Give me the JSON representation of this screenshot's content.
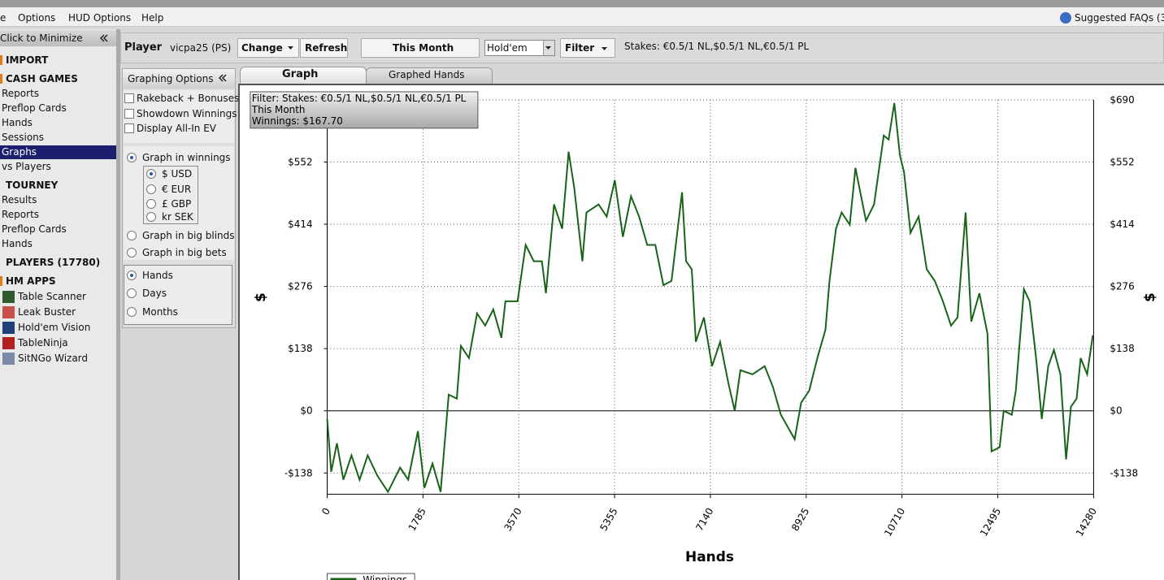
{
  "menu": {
    "items": [
      "e",
      "Options",
      "HUD Options",
      "Help"
    ],
    "faq": "Suggested FAQs (3"
  },
  "sidebar": {
    "minimize": "Click to Minimize",
    "import": "IMPORT",
    "cash_games": {
      "title": "CASH GAMES",
      "items": [
        "Reports",
        "Preflop Cards",
        "Hands",
        "Sessions",
        "Graphs",
        "vs Players"
      ]
    },
    "tourney": {
      "title": "TOURNEY",
      "items": [
        "Results",
        "Reports",
        "Preflop Cards",
        "Hands"
      ]
    },
    "players": "PLAYERS (17780)",
    "hm_apps": {
      "title": "HM APPS",
      "items": [
        "Table Scanner",
        "Leak Buster",
        "Hold'em Vision",
        "TableNinja",
        "SitNGo Wizard"
      ]
    }
  },
  "toolbar": {
    "player_label": "Player",
    "player": "vicpa25 (PS)",
    "change": "Change",
    "refresh": "Refresh",
    "period": "This Month",
    "game": "Hold'em",
    "filter": "Filter",
    "stakes": "Stakes: €0.5/1 NL,$0.5/1 NL,€0.5/1 PL"
  },
  "options": {
    "title": "Graphing Options",
    "checkboxes": [
      "Rakeback + Bonuses",
      "Showdown Winnings",
      "Display All-In EV"
    ],
    "graph_in": [
      "Graph in winnings",
      "Graph in big blinds",
      "Graph in big bets"
    ],
    "currencies": [
      "$ USD",
      "€ EUR",
      "£ GBP",
      "kr SEK"
    ],
    "x_modes": [
      "Hands",
      "Days",
      "Months"
    ]
  },
  "tabs": [
    "Graph",
    "Graphed Hands"
  ],
  "chart_data": {
    "type": "line",
    "x_label": "Hands",
    "y_label": "$",
    "annotations": [
      "Filter: Stakes: €0.5/1 NL,$0.5/1 NL,€0.5/1 PL",
      "This Month",
      "Winnings: $167.70"
    ],
    "xlim": [
      0,
      14280
    ],
    "xticks": [
      0,
      1785,
      3570,
      5355,
      7140,
      8925,
      10710,
      12495,
      14280
    ],
    "ylim": [
      -185,
      690
    ],
    "yticks": [
      {
        "value": -138,
        "label": "-$138"
      },
      {
        "value": 0,
        "label": "$0"
      },
      {
        "value": 138,
        "label": "$138"
      },
      {
        "value": 276,
        "label": "$276"
      },
      {
        "value": 414,
        "label": "$414"
      },
      {
        "value": 552,
        "label": "$552"
      },
      {
        "value": 690,
        "label": "$690"
      }
    ],
    "grid": true,
    "x": [
      0,
      75,
      181,
      302,
      453,
      604,
      755,
      936,
      1132,
      1359,
      1510,
      1691,
      1811,
      1962,
      2113,
      2189,
      2264,
      2415,
      2491,
      2642,
      2793,
      2944,
      3094,
      3245,
      3321,
      3547,
      3698,
      3849,
      4000,
      4076,
      4227,
      4378,
      4498,
      4604,
      4755,
      4830,
      5057,
      5208,
      5359,
      5510,
      5661,
      5812,
      5963,
      6113,
      6264,
      6415,
      6612,
      6687,
      6793,
      6868,
      7019,
      7170,
      7321,
      7472,
      7593,
      7698,
      7925,
      8151,
      8302,
      8453,
      8710,
      8831,
      8982,
      9132,
      9283,
      9359,
      9480,
      9585,
      9736,
      9842,
      10038,
      10189,
      10370,
      10461,
      10567,
      10672,
      10748,
      10868,
      11019,
      11170,
      11321,
      11472,
      11623,
      11744,
      11895,
      12000,
      12151,
      12302,
      12378,
      12529,
      12604,
      12755,
      12831,
      12982,
      13087,
      13208,
      13314,
      13435,
      13540,
      13661,
      13767,
      13857,
      13963,
      14038,
      14159,
      14265
    ],
    "series": [
      {
        "name": "Winnings",
        "color": "#176317",
        "values": [
          -18,
          -135,
          -72,
          -153,
          -99,
          -153,
          -99,
          -144,
          -180,
          -126,
          -153,
          -45,
          -171,
          -117,
          -180,
          -72,
          36,
          27,
          144,
          117,
          216,
          189,
          225,
          162,
          243,
          243,
          368,
          332,
          332,
          261,
          458,
          404,
          575,
          494,
          332,
          440,
          458,
          431,
          512,
          386,
          476,
          431,
          368,
          368,
          279,
          288,
          485,
          332,
          314,
          153,
          207,
          99,
          153,
          63,
          0,
          90,
          81,
          99,
          54,
          -9,
          -63,
          18,
          45,
          117,
          180,
          288,
          404,
          440,
          413,
          539,
          422,
          458,
          611,
          602,
          683,
          566,
          530,
          395,
          431,
          314,
          288,
          243,
          189,
          207,
          440,
          198,
          261,
          171,
          -90,
          -81,
          0,
          -9,
          45,
          270,
          243,
          117,
          -18,
          99,
          135,
          81,
          -108,
          9,
          27,
          117,
          81,
          167.7
        ]
      }
    ]
  }
}
